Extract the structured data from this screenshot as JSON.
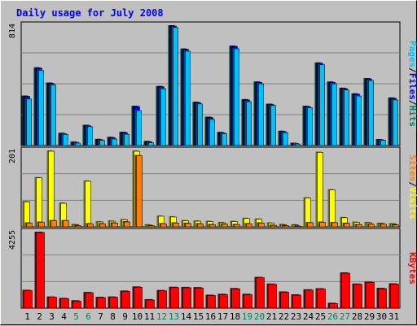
{
  "title": "Daily usage for July 2008",
  "colors": {
    "background": "#c0c0c0",
    "title": "#0000ff",
    "hits": "#00805c",
    "files": "#0000ff",
    "pages": "#00c0ff",
    "visits": "#ffff00",
    "sites": "#ff8000",
    "kbytes": "#ff0000",
    "weekend_day": "#00805c",
    "weekday": "#000000"
  },
  "chart_data": [
    {
      "type": "bar",
      "panel": "top",
      "ymax_label": "814",
      "ymax": 814,
      "legend": [
        "Pages",
        "Files",
        "Hits"
      ],
      "categories": [
        "1",
        "2",
        "3",
        "4",
        "5",
        "6",
        "7",
        "8",
        "9",
        "10",
        "11",
        "12",
        "13",
        "14",
        "15",
        "16",
        "17",
        "18",
        "19",
        "20",
        "21",
        "22",
        "23",
        "24",
        "25",
        "26",
        "27",
        "28",
        "29",
        "30",
        "31"
      ],
      "weekend_days": [
        "5",
        "6",
        "12",
        "13",
        "19",
        "20",
        "26",
        "27"
      ],
      "series": [
        {
          "name": "Hits",
          "values": [
            338,
            529,
            426,
            86,
            27,
            140,
            45,
            59,
            93,
            269,
            31,
            403,
            814,
            656,
            296,
            195,
            92,
            676,
            314,
            433,
            283,
            100,
            19,
            269,
            562,
            433,
            391,
            353,
            456,
            44,
            325
          ]
        },
        {
          "name": "Files",
          "values": [
            338,
            529,
            426,
            86,
            27,
            140,
            45,
            59,
            93,
            269,
            31,
            403,
            814,
            656,
            296,
            195,
            92,
            676,
            314,
            433,
            283,
            100,
            19,
            269,
            562,
            433,
            391,
            353,
            456,
            44,
            325
          ]
        },
        {
          "name": "Pages",
          "values": [
            320,
            514,
            416,
            80,
            22,
            133,
            40,
            50,
            82,
            242,
            24,
            390,
            804,
            644,
            287,
            182,
            86,
            660,
            302,
            423,
            276,
            92,
            16,
            262,
            552,
            423,
            381,
            341,
            445,
            41,
            314
          ]
        }
      ]
    },
    {
      "type": "bar",
      "panel": "middle",
      "ymax_label": "201",
      "ymax": 201,
      "legend": [
        "Sites",
        "Visits"
      ],
      "categories": [
        "1",
        "2",
        "3",
        "4",
        "5",
        "6",
        "7",
        "8",
        "9",
        "10",
        "11",
        "12",
        "13",
        "14",
        "15",
        "16",
        "17",
        "18",
        "19",
        "20",
        "21",
        "22",
        "23",
        "24",
        "25",
        "26",
        "27",
        "28",
        "29",
        "30",
        "31"
      ],
      "series": [
        {
          "name": "Visits",
          "values": [
            68,
            131,
            201,
            64,
            8,
            122,
            15,
            17,
            21,
            201,
            7,
            30,
            28,
            18,
            17,
            16,
            13,
            16,
            24,
            22,
            12,
            8,
            7,
            78,
            198,
            99,
            26,
            14,
            13,
            11,
            10
          ]
        },
        {
          "name": "Sites",
          "values": [
            12,
            14,
            18,
            18,
            5,
            10,
            10,
            12,
            15,
            189,
            5,
            10,
            12,
            11,
            10,
            8,
            9,
            8,
            10,
            12,
            6,
            5,
            4,
            13,
            14,
            13,
            11,
            8,
            9,
            9,
            7
          ]
        }
      ]
    },
    {
      "type": "bar",
      "panel": "bottom",
      "ymax_label": "4255",
      "ymax": 4255,
      "legend": [
        "KBytes"
      ],
      "categories": [
        "1",
        "2",
        "3",
        "4",
        "5",
        "6",
        "7",
        "8",
        "9",
        "10",
        "11",
        "12",
        "13",
        "14",
        "15",
        "16",
        "17",
        "18",
        "19",
        "20",
        "21",
        "22",
        "23",
        "24",
        "25",
        "26",
        "27",
        "28",
        "29",
        "30",
        "31"
      ],
      "series": [
        {
          "name": "KBytes",
          "values": [
            1020,
            4255,
            650,
            570,
            440,
            900,
            630,
            650,
            980,
            1210,
            500,
            1010,
            1190,
            1180,
            1170,
            750,
            800,
            1120,
            800,
            1740,
            1370,
            930,
            770,
            1050,
            1110,
            300,
            1990,
            1370,
            1480,
            1130,
            1380
          ]
        }
      ]
    }
  ]
}
